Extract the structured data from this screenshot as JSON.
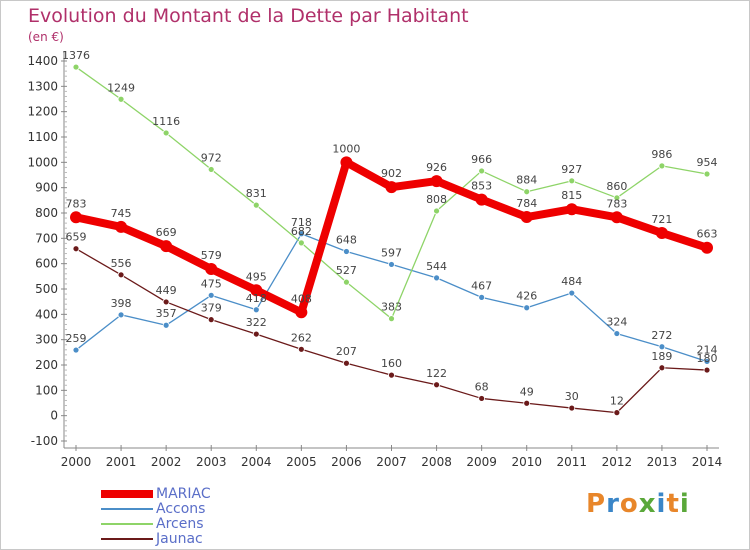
{
  "title": "Evolution du Montant de la Dette par Habitant",
  "unit": "(en €)",
  "brand": "Proxiti",
  "chart_data": {
    "type": "line",
    "categories": [
      "2000",
      "2001",
      "2002",
      "2003",
      "2004",
      "2005",
      "2006",
      "2007",
      "2008",
      "2009",
      "2010",
      "2011",
      "2012",
      "2013",
      "2014"
    ],
    "ylim": [
      -100,
      1400
    ],
    "yticks": [
      -100,
      0,
      100,
      200,
      300,
      400,
      500,
      600,
      700,
      800,
      900,
      1000,
      1100,
      1200,
      1300,
      1400
    ],
    "grid": false,
    "legend_position": "bottom-left",
    "series": [
      {
        "name": "MARIAC",
        "color": "#ee0000",
        "values": [
          783,
          745,
          669,
          579,
          495,
          408,
          1000,
          902,
          926,
          853,
          784,
          815,
          783,
          721,
          663
        ]
      },
      {
        "name": "Accons",
        "color": "#4b8ec8",
        "values": [
          259,
          398,
          357,
          475,
          418,
          718,
          648,
          597,
          544,
          467,
          426,
          484,
          324,
          272,
          214
        ]
      },
      {
        "name": "Arcens",
        "color": "#8ed468",
        "values": [
          1376,
          1249,
          1116,
          972,
          831,
          682,
          527,
          383,
          808,
          966,
          884,
          927,
          860,
          986,
          954
        ]
      },
      {
        "name": "Jaunac",
        "color": "#6b1a1a",
        "values": [
          659,
          556,
          449,
          379,
          322,
          262,
          207,
          160,
          122,
          68,
          49,
          30,
          12,
          189,
          180
        ]
      }
    ]
  }
}
